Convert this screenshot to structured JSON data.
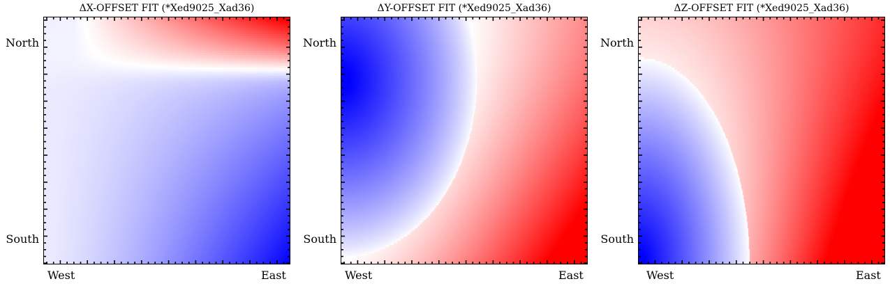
{
  "chart_data": [
    {
      "type": "heatmap",
      "title": "ΔX-OFFSET FIT (*Xed9025_Xad36)",
      "x_ticks": [
        "West",
        "East"
      ],
      "y_ticks": [
        "North",
        "South"
      ],
      "colormap": "bwr",
      "colormap_colors": [
        "#0000ff",
        "#ffffff",
        "#ff0000"
      ],
      "pattern": "red peak in top-right corner; near-white across the upper-left and center; blue increasing toward bottom-right corner"
    },
    {
      "type": "heatmap",
      "title": "ΔY-OFFSET FIT (*Xed9025_Xad36)",
      "x_ticks": [
        "West",
        "East"
      ],
      "y_ticks": [
        "North",
        "South"
      ],
      "colormap": "bwr",
      "colormap_colors": [
        "#0000ff",
        "#ffffff",
        "#ff0000"
      ],
      "pattern": "blue lobe on the left side centered near the top-left; white curved boundary; red increasing toward bottom-right corner"
    },
    {
      "type": "heatmap",
      "title": "ΔZ-OFFSET FIT (*Xed9025_Xad36)",
      "x_ticks": [
        "West",
        "East"
      ],
      "y_ticks": [
        "North",
        "South"
      ],
      "colormap": "bwr",
      "colormap_colors": [
        "#0000ff",
        "#ffffff",
        "#ff0000"
      ],
      "pattern": "blue lobe in bottom-left corner; white curved boundary; light red across the top and strong red toward bottom-right corner"
    }
  ]
}
